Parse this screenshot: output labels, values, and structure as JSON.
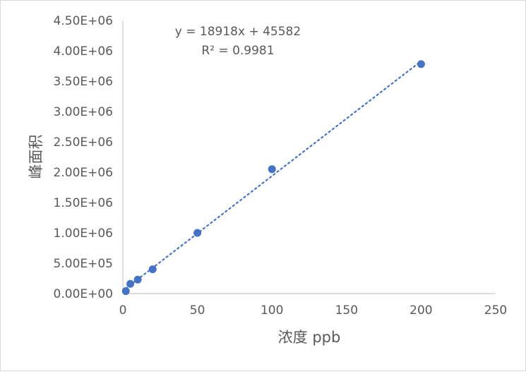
{
  "chart_data": {
    "type": "scatter",
    "title": "",
    "xlabel": "浓度 ppb",
    "ylabel": "峰面积",
    "xlim": [
      0,
      250
    ],
    "ylim": [
      0,
      4500000
    ],
    "x_ticks": [
      "0",
      "50",
      "100",
      "150",
      "200",
      "250"
    ],
    "y_ticks": [
      "0.00E+00",
      "5.00E+05",
      "1.00E+06",
      "1.50E+06",
      "2.00E+06",
      "2.50E+06",
      "3.00E+06",
      "3.50E+06",
      "4.00E+06",
      "4.50E+06"
    ],
    "series": [
      {
        "x": [
          2,
          5,
          10,
          20,
          50,
          100,
          200
        ],
        "y": [
          40000,
          160000,
          230000,
          400000,
          1000000,
          2050000,
          3780000
        ]
      }
    ],
    "trendline": {
      "type": "linear",
      "slope": 18918,
      "intercept": 45582,
      "style": "dotted"
    },
    "equation_text": "y = 18918x + 45582",
    "r2_text": "R² = 0.9981",
    "grid": false,
    "legend": "none",
    "colors": {
      "marker": "#4472c4",
      "trendline": "#4472c4",
      "axis": "#bfbfbf",
      "text": "#595959"
    }
  }
}
